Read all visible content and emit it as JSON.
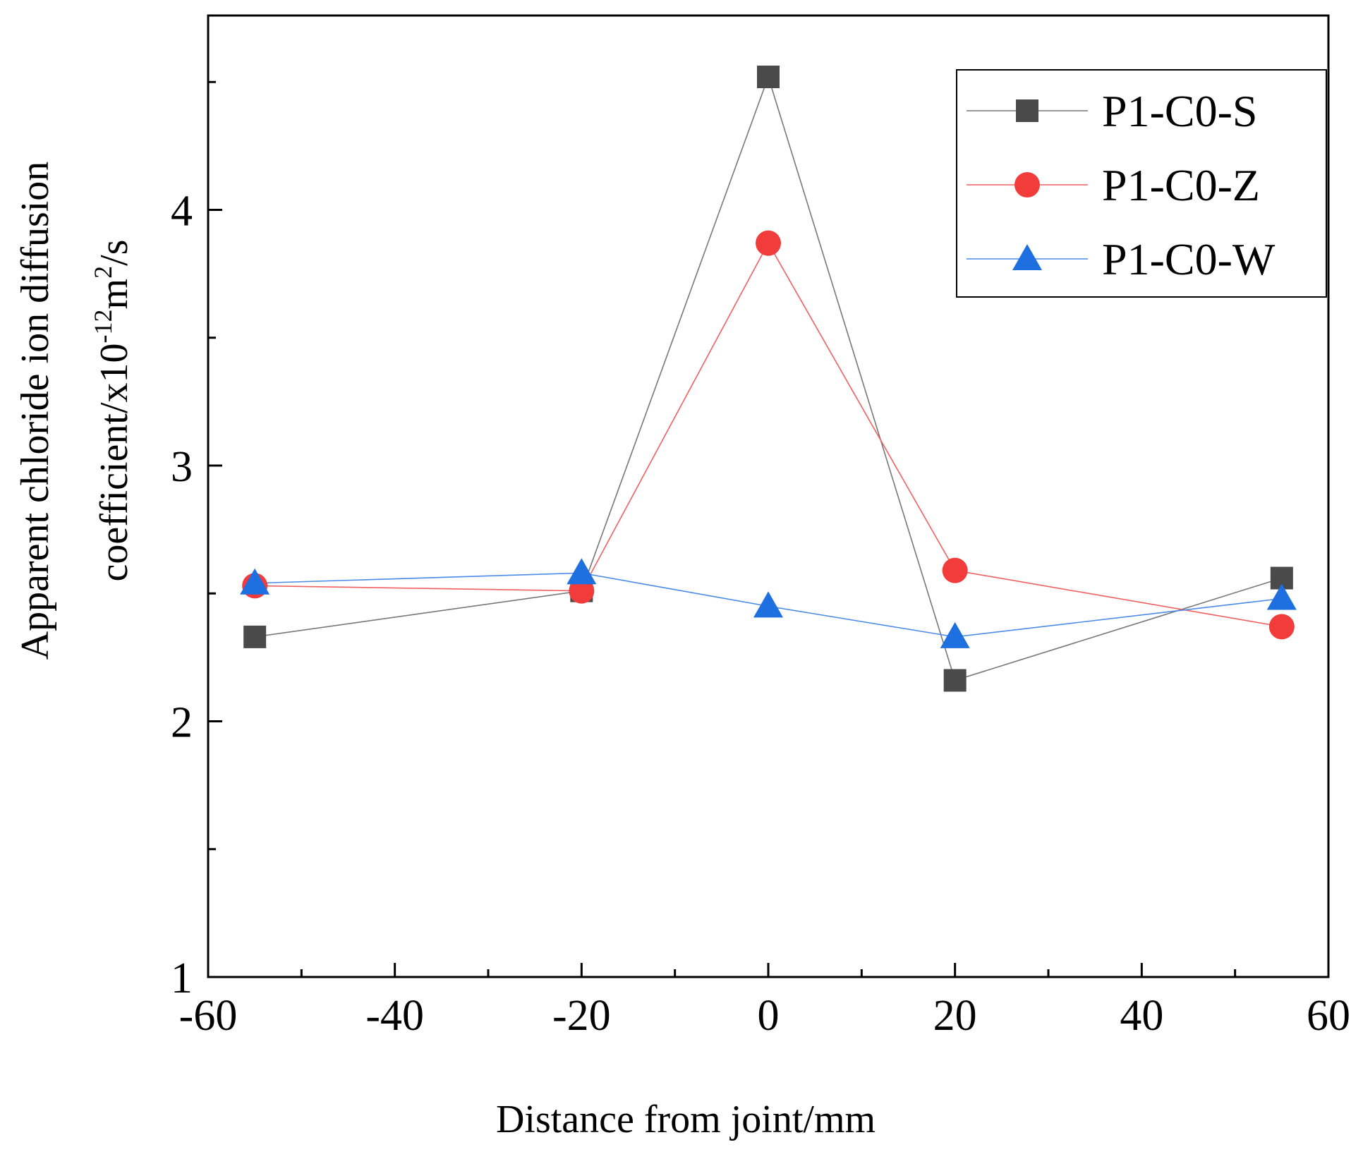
{
  "chart_data": {
    "type": "line",
    "xlabel": "Distance from joint/mm",
    "ylabel": {
      "line1": "Apparent chloride ion diffusion",
      "line2": [
        "coefficient/x10",
        "-12",
        "m",
        "2",
        "/s"
      ]
    },
    "x": [
      -55,
      -20,
      0,
      20,
      55
    ],
    "series": [
      {
        "name": "P1-C0-S",
        "color": "#4a4a4a",
        "line_color": "#777777",
        "marker": "square",
        "values": [
          2.33,
          2.51,
          4.52,
          2.16,
          2.56
        ]
      },
      {
        "name": "P1-C0-Z",
        "color": "#f23b3b",
        "line_color": "#f06060",
        "marker": "circle",
        "values": [
          2.53,
          2.51,
          3.87,
          2.59,
          2.37
        ]
      },
      {
        "name": "P1-C0-W",
        "color": "#1e6fe0",
        "line_color": "#4a8ae8",
        "marker": "triangle",
        "values": [
          2.54,
          2.58,
          2.45,
          2.33,
          2.48
        ]
      }
    ],
    "xlim": [
      -60,
      60
    ],
    "xticks": [
      -60,
      -40,
      -20,
      0,
      20,
      40,
      60
    ],
    "minor_xticks": [
      -50,
      -30,
      -10,
      10,
      30,
      50
    ],
    "ylim": [
      1,
      4.76
    ],
    "yticks": [
      1,
      2,
      3,
      4
    ],
    "minor_yticks": [
      1.5,
      2.5,
      3.5,
      4.5
    ],
    "grid": false,
    "legend": "upper right"
  }
}
